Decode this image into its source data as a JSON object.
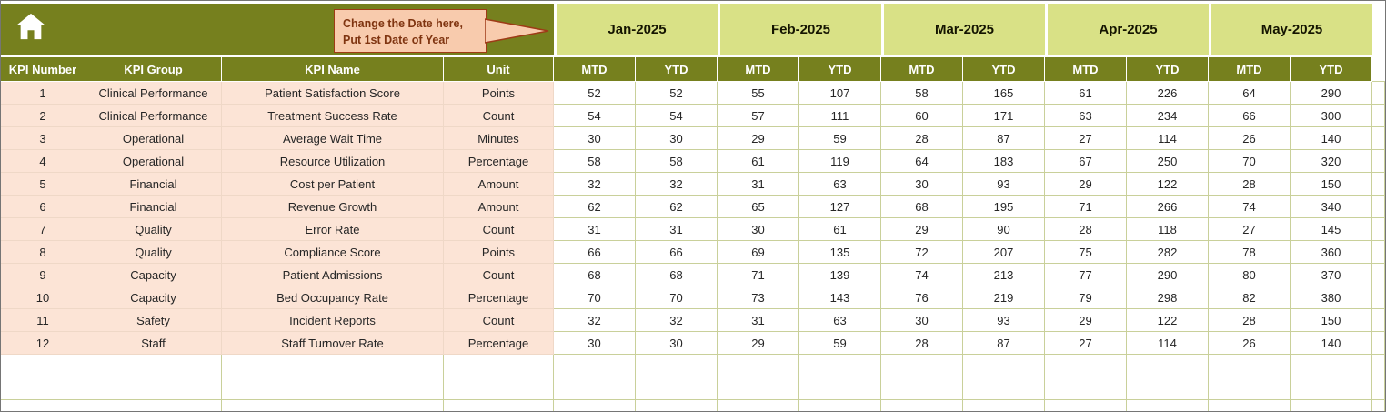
{
  "header": {
    "home_icon": "home",
    "callout": {
      "line1": "Change the Date here,",
      "line2": "Put 1st Date of Year"
    }
  },
  "table": {
    "left_headers": [
      "KPI Number",
      "KPI Group",
      "KPI Name",
      "Unit"
    ],
    "months": [
      "Jan-2025",
      "Feb-2025",
      "Mar-2025",
      "Apr-2025",
      "May-2025"
    ],
    "period_headers": [
      "MTD",
      "YTD"
    ],
    "rows": [
      {
        "number": "1",
        "group": "Clinical Performance",
        "name": "Patient Satisfaction Score",
        "unit": "Points",
        "values": [
          52,
          52,
          55,
          107,
          58,
          165,
          61,
          226,
          64,
          290
        ]
      },
      {
        "number": "2",
        "group": "Clinical Performance",
        "name": "Treatment Success Rate",
        "unit": "Count",
        "values": [
          54,
          54,
          57,
          111,
          60,
          171,
          63,
          234,
          66,
          300
        ]
      },
      {
        "number": "3",
        "group": "Operational",
        "name": "Average Wait Time",
        "unit": "Minutes",
        "values": [
          30,
          30,
          29,
          59,
          28,
          87,
          27,
          114,
          26,
          140
        ]
      },
      {
        "number": "4",
        "group": "Operational",
        "name": "Resource Utilization",
        "unit": "Percentage",
        "values": [
          58,
          58,
          61,
          119,
          64,
          183,
          67,
          250,
          70,
          320
        ]
      },
      {
        "number": "5",
        "group": "Financial",
        "name": "Cost per Patient",
        "unit": "Amount",
        "values": [
          32,
          32,
          31,
          63,
          30,
          93,
          29,
          122,
          28,
          150
        ]
      },
      {
        "number": "6",
        "group": "Financial",
        "name": "Revenue Growth",
        "unit": "Amount",
        "values": [
          62,
          62,
          65,
          127,
          68,
          195,
          71,
          266,
          74,
          340
        ]
      },
      {
        "number": "7",
        "group": "Quality",
        "name": "Error Rate",
        "unit": "Count",
        "values": [
          31,
          31,
          30,
          61,
          29,
          90,
          28,
          118,
          27,
          145
        ]
      },
      {
        "number": "8",
        "group": "Quality",
        "name": "Compliance Score",
        "unit": "Points",
        "values": [
          66,
          66,
          69,
          135,
          72,
          207,
          75,
          282,
          78,
          360
        ]
      },
      {
        "number": "9",
        "group": "Capacity",
        "name": "Patient Admissions",
        "unit": "Count",
        "values": [
          68,
          68,
          71,
          139,
          74,
          213,
          77,
          290,
          80,
          370
        ]
      },
      {
        "number": "10",
        "group": "Capacity",
        "name": "Bed Occupancy Rate",
        "unit": "Percentage",
        "values": [
          70,
          70,
          73,
          143,
          76,
          219,
          79,
          298,
          82,
          380
        ]
      },
      {
        "number": "11",
        "group": "Safety",
        "name": "Incident Reports",
        "unit": "Count",
        "values": [
          32,
          32,
          31,
          63,
          30,
          93,
          29,
          122,
          28,
          150
        ]
      },
      {
        "number": "12",
        "group": "Staff",
        "name": "Staff Turnover Rate",
        "unit": "Percentage",
        "values": [
          30,
          30,
          29,
          59,
          28,
          87,
          27,
          114,
          26,
          140
        ]
      }
    ],
    "empty_rows": 3
  },
  "colors": {
    "olive_header": "#76801e",
    "month_header": "#d9e186",
    "row_pink": "#fce4d6",
    "callout_fill": "#f8cbad",
    "callout_border": "#9e3a16",
    "callout_text": "#7f3410",
    "grid_line": "#c9d09a",
    "pink_grid_line": "#efd8c7",
    "text_dark": "#262626"
  }
}
